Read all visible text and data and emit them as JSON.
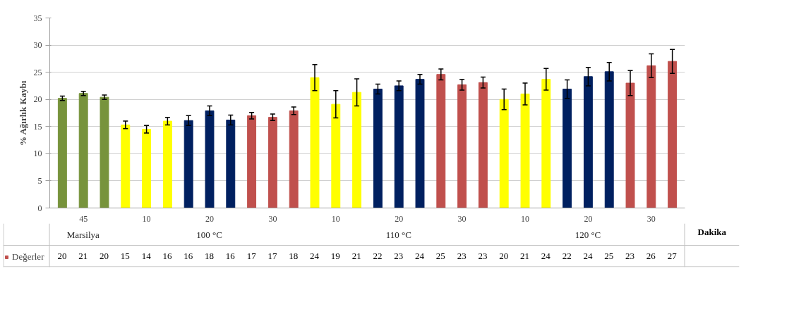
{
  "chart_data": {
    "type": "bar",
    "ylabel": "% Ağırlık Kaybı",
    "xlabel": "Dakika",
    "categories": [
      null,
      "45",
      null,
      null,
      "10",
      null,
      null,
      "20",
      null,
      null,
      "30",
      null,
      null,
      "10",
      null,
      null,
      "20",
      null,
      null,
      "30",
      null,
      null,
      "10",
      null,
      null,
      "20",
      null,
      null,
      "30",
      null
    ],
    "annotations": [
      "Marsilya",
      "100 °C",
      "110 °C",
      "120 °C"
    ],
    "series": [
      {
        "name": "Değerler",
        "color": "#c0504d",
        "colors": [
          "#77933c",
          "#77933c",
          "#77933c",
          "#ffff00",
          "#ffff00",
          "#ffff00",
          "#002060",
          "#002060",
          "#002060",
          "#c0504d",
          "#c0504d",
          "#c0504d",
          "#ffff00",
          "#ffff00",
          "#ffff00",
          "#002060",
          "#002060",
          "#002060",
          "#c0504d",
          "#c0504d",
          "#c0504d",
          "#ffff00",
          "#ffff00",
          "#ffff00",
          "#002060",
          "#002060",
          "#002060",
          "#c0504d",
          "#c0504d",
          "#c0504d"
        ],
        "values": [
          20.2,
          21.1,
          20.4,
          15.3,
          14.5,
          16.0,
          16.1,
          17.9,
          16.2,
          17.0,
          16.7,
          17.9,
          24.0,
          19.1,
          21.3,
          21.9,
          22.5,
          23.7,
          24.6,
          22.7,
          23.1,
          20.0,
          21.0,
          23.7,
          21.9,
          24.2,
          25.1,
          23.0,
          26.2,
          27.0
        ],
        "errors": [
          0.4,
          0.4,
          0.4,
          0.7,
          0.7,
          0.7,
          0.9,
          0.9,
          0.9,
          0.6,
          0.6,
          0.7,
          2.4,
          2.5,
          2.5,
          0.9,
          0.9,
          0.9,
          1.0,
          1.0,
          1.0,
          1.9,
          2.0,
          2.0,
          1.7,
          1.7,
          1.7,
          2.3,
          2.2,
          2.2
        ],
        "value_labels": [
          "20",
          "21",
          "20",
          "15",
          "14",
          "16",
          "16",
          "18",
          "16",
          "17",
          "17",
          "18",
          "24",
          "19",
          "21",
          "22",
          "23",
          "24",
          "25",
          "23",
          "23",
          "20",
          "21",
          "24",
          "22",
          "24",
          "25",
          "23",
          "26",
          "27"
        ]
      }
    ],
    "ylim": [
      0,
      35
    ],
    "yticks": [
      0,
      5,
      10,
      15,
      20,
      25,
      30,
      35
    ],
    "grid": "y",
    "legend": "bottom left"
  }
}
